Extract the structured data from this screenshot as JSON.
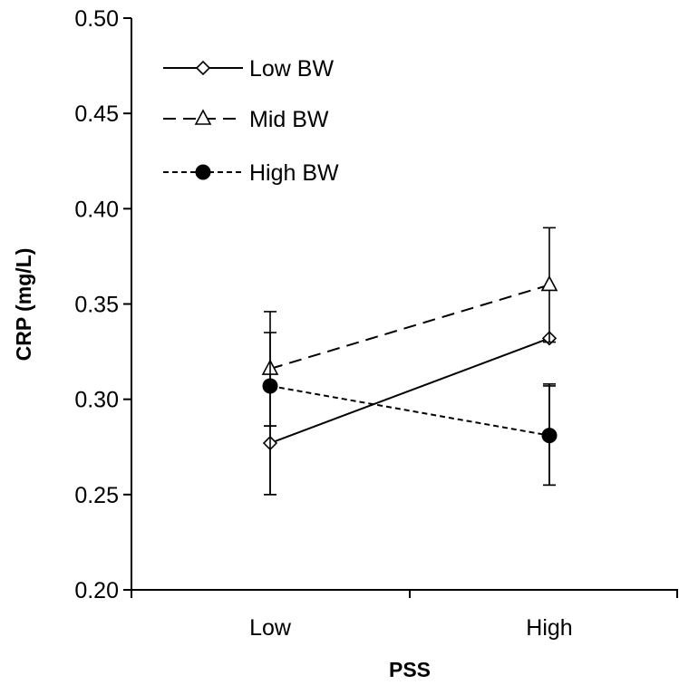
{
  "chart_data": {
    "type": "line",
    "categories": [
      "Low",
      "High"
    ],
    "xlabel": "PSS",
    "ylabel": "CRP (mg/L)",
    "ylim": [
      0.2,
      0.5
    ],
    "yticks": [
      0.2,
      0.25,
      0.3,
      0.35,
      0.4,
      0.45,
      0.5
    ],
    "ytick_labels": [
      "0.20",
      "0.25",
      "0.30",
      "0.35",
      "0.40",
      "0.45",
      "0.50"
    ],
    "grid": false,
    "legend_position": "top-left",
    "series": [
      {
        "name": "Low BW",
        "values": [
          0.277,
          0.332
        ],
        "error": [
          [
            0.286,
            0.307
          ],
          [
            0.25,
            0.255
          ]
        ],
        "line_style": "solid",
        "marker": "diamond-open",
        "color": "#000000"
      },
      {
        "name": "Mid BW",
        "values": [
          0.316,
          0.36
        ],
        "error": [
          [
            0.346,
            0.39
          ],
          [
            0.286,
            0.33
          ]
        ],
        "line_style": "dashed",
        "marker": "triangle-open",
        "color": "#000000"
      },
      {
        "name": "High BW",
        "values": [
          0.307,
          0.281
        ],
        "error": [
          [
            0.335,
            0.308
          ],
          [
            0.25,
            0.255
          ]
        ],
        "line_style": "dotted",
        "marker": "circle-filled",
        "color": "#000000"
      }
    ]
  }
}
